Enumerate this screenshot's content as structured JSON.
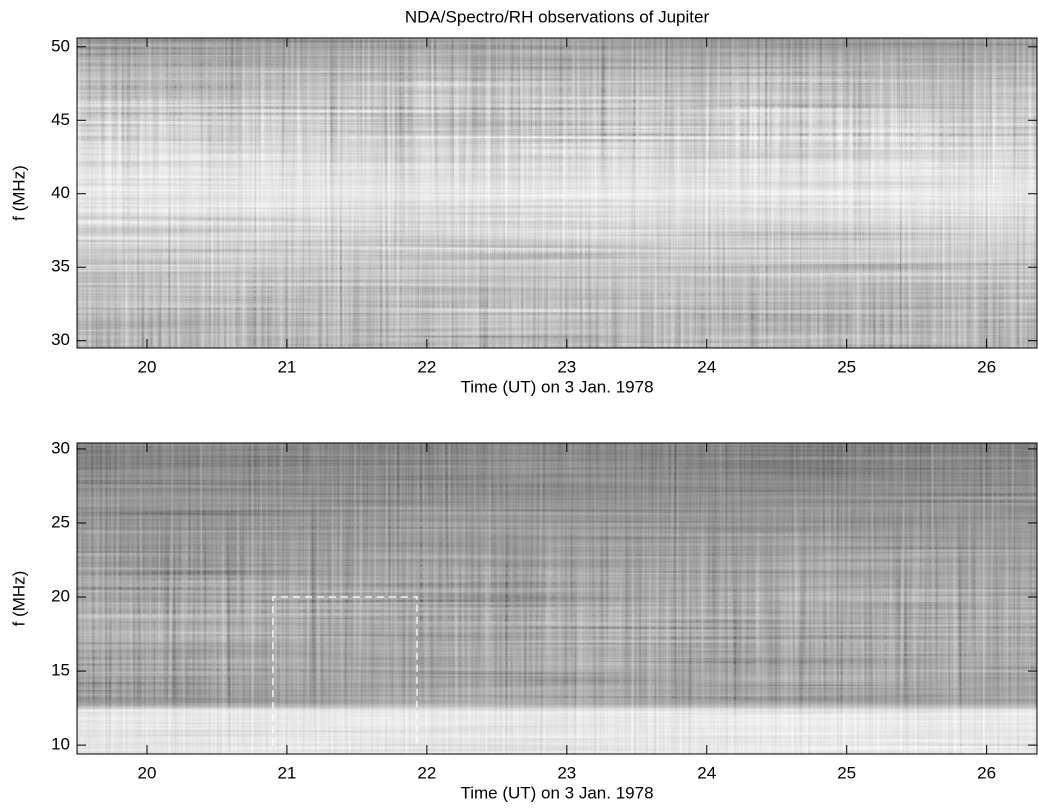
{
  "chart_data": [
    {
      "type": "spectrogram",
      "title": "NDA/Spectro/RH observations of Jupiter",
      "xlabel": "Time (UT) on 3 Jan. 1978",
      "ylabel": "f (MHz)",
      "xlim": [
        19.5,
        26.36
      ],
      "xticks": [
        20,
        21,
        22,
        23,
        24,
        25,
        26
      ],
      "ylim": [
        29.5,
        50.6
      ],
      "yticks": [
        30,
        35,
        40,
        45,
        50
      ]
    },
    {
      "type": "spectrogram",
      "xlabel": "Time (UT) on 3 Jan. 1978",
      "ylabel": "f (MHz)",
      "xlim": [
        19.5,
        26.36
      ],
      "xticks": [
        20,
        21,
        22,
        23,
        24,
        25,
        26
      ],
      "ylim": [
        9.4,
        30.4
      ],
      "yticks": [
        10,
        15,
        20,
        25,
        30
      ],
      "annotation_box": {
        "x": [
          20.9,
          21.93
        ],
        "y": [
          10,
          20
        ],
        "color": "#ffffff"
      }
    }
  ]
}
